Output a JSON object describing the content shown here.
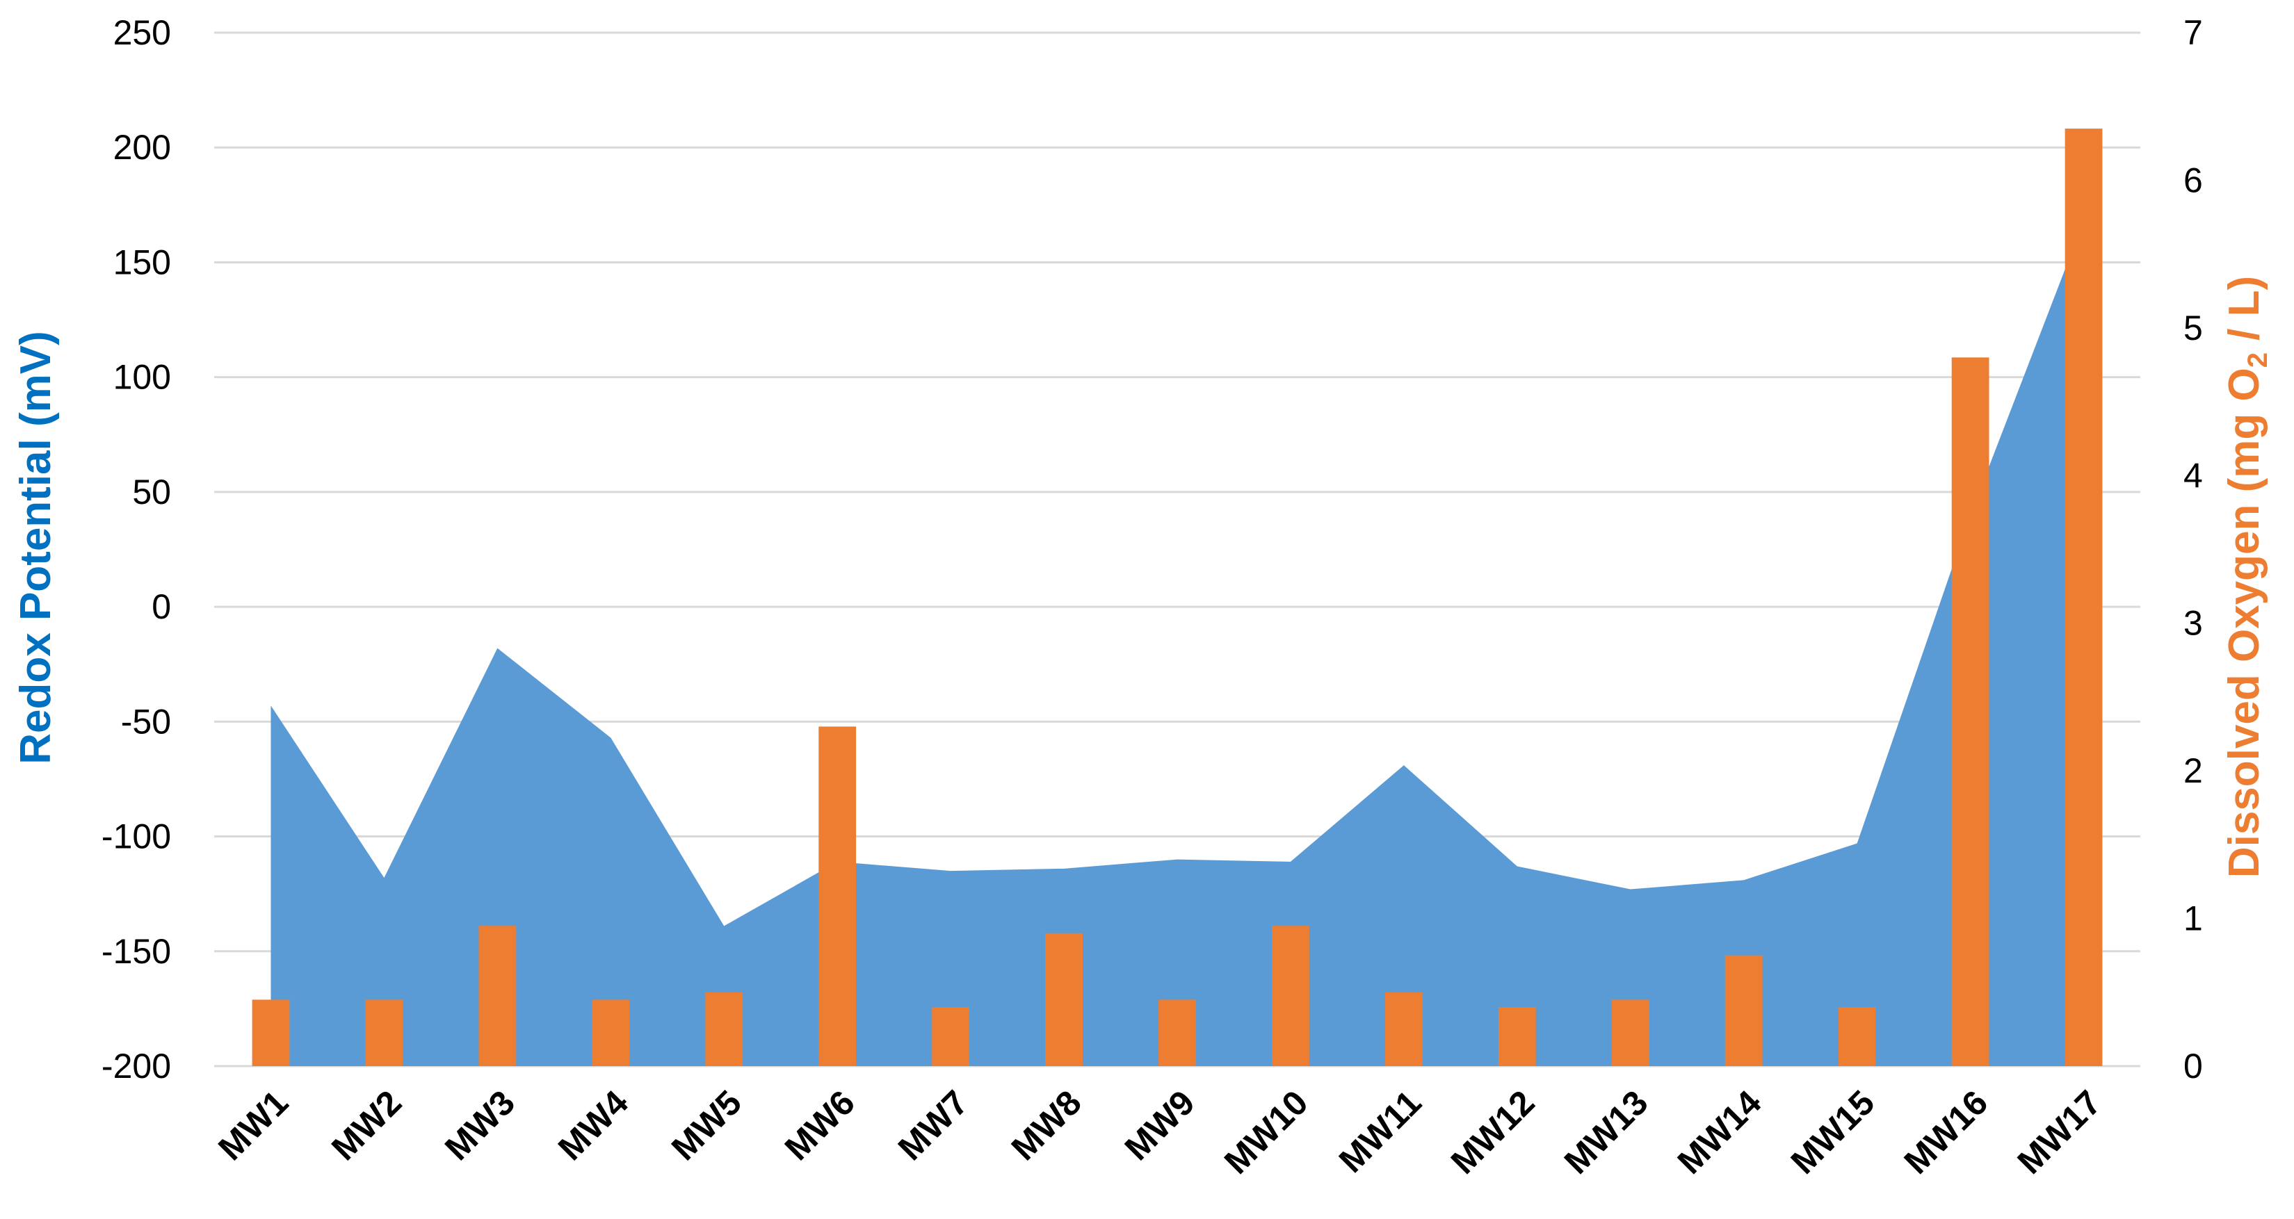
{
  "chart_data": {
    "type": "bar",
    "categories": [
      "MW1",
      "MW2",
      "MW3",
      "MW4",
      "MW5",
      "MW6",
      "MW7",
      "MW8",
      "MW9",
      "MW10",
      "MW11",
      "MW12",
      "MW13",
      "MW14",
      "MW15",
      "MW16",
      "MW17"
    ],
    "series": [
      {
        "name": "Redox Potential",
        "type": "area",
        "axis": "left",
        "color": "#5b9bd5",
        "values": [
          -43,
          -118,
          -18,
          -57,
          -139,
          -111,
          -115,
          -114,
          -110,
          -111,
          -69,
          -113,
          -123,
          -119,
          -103,
          40,
          168
        ]
      },
      {
        "name": "Dissolved Oxygen",
        "type": "bar",
        "axis": "right",
        "color": "#ed7d31",
        "values": [
          0.45,
          0.45,
          0.95,
          0.45,
          0.5,
          2.3,
          0.4,
          0.9,
          0.45,
          0.95,
          0.5,
          0.4,
          0.45,
          0.75,
          0.4,
          4.8,
          6.35
        ]
      }
    ],
    "y_left": {
      "label_main": "Redox Potential (mV)",
      "color": "#0070c0",
      "ylim": [
        -200,
        250
      ],
      "ticks": [
        "250",
        "200",
        "150",
        "100",
        "50",
        "0",
        "-50",
        "-100",
        "-150",
        "-200"
      ]
    },
    "y_right": {
      "label_prefix": "Dissolved Oxygen (mg O",
      "label_sub": "2",
      "label_suffix": " / L)",
      "color": "#ed7d31",
      "ylim": [
        0,
        7
      ],
      "ticks": [
        "7",
        "6",
        "5",
        "4",
        "3",
        "2",
        "1",
        "0"
      ]
    },
    "grid": true,
    "legend": "none"
  }
}
